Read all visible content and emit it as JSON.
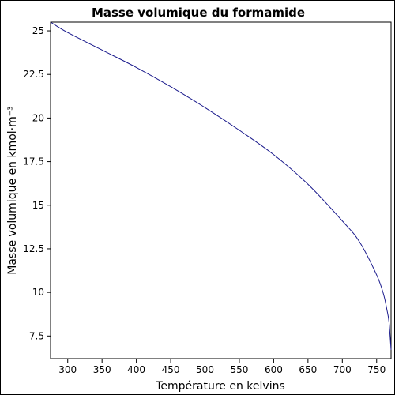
{
  "chart_data": {
    "type": "line",
    "title": "Masse volumique du formamide",
    "xlabel": "Température en kelvins",
    "ylabel": "Masse volumique en kmol·m⁻³",
    "xlim": [
      275,
      771
    ],
    "ylim": [
      6.2,
      25.5
    ],
    "x_ticks": [
      300,
      350,
      400,
      450,
      500,
      550,
      600,
      650,
      700,
      750
    ],
    "x_tick_labels": [
      "300",
      "350",
      "400",
      "450",
      "500",
      "550",
      "600",
      "650",
      "700",
      "750"
    ],
    "y_ticks": [
      7.5,
      10,
      12.5,
      15,
      17.5,
      20,
      22.5,
      25
    ],
    "y_tick_labels": [
      "7.5",
      "10",
      "12.5",
      "15",
      "17.5",
      "20",
      "22.5",
      "25"
    ],
    "grid": false,
    "legend": "none",
    "series": [
      {
        "color": "#1a1a8c",
        "x": [
          275,
          300,
          350,
          400,
          450,
          500,
          550,
          600,
          650,
          700,
          725,
          750,
          760,
          765,
          768,
          771
        ],
        "y": [
          25.5,
          24.9,
          23.9,
          22.9,
          21.8,
          20.6,
          19.3,
          17.9,
          16.2,
          14.1,
          12.9,
          11.0,
          9.9,
          9.0,
          8.3,
          6.7
        ]
      }
    ]
  }
}
